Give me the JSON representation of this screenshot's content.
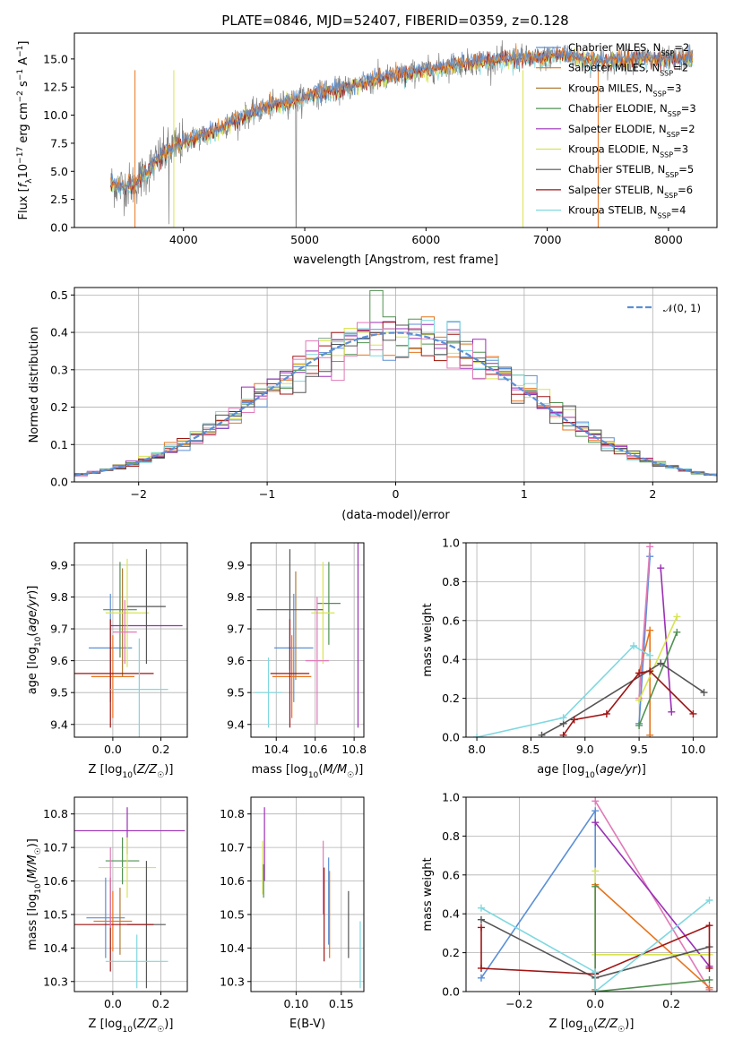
{
  "figure": {
    "title": "PLATE=0846, MJD=52407, FIBERID=0359, z=0.128"
  },
  "colors": {
    "Chabrier MILES": "#5b8fd6",
    "Salpeter MILES": "#e6741c",
    "Kroupa MILES": "#b07c38",
    "Chabrier ELODIE": "#4f9150",
    "Salpeter ELODIE": "#9b2fb5",
    "Kroupa ELODIE": "#d8e450",
    "Chabrier STELIB": "#555555",
    "Salpeter STELIB": "#a01414",
    "Kroupa STELIB": "#7fd8e0",
    "pink": "#e07ab8",
    "gaussian": "#5b8fd6"
  },
  "chart_data": [
    {
      "id": "spectrum",
      "type": "line",
      "title": "PLATE=0846, MJD=52407, FIBERID=0359, z=0.128",
      "xlabel": "wavelength [Angstrom, rest frame]",
      "ylabel": "Flux [f_λ 10^-17 erg cm^-2 s^-1 A^-1]",
      "xlim": [
        3100,
        8400
      ],
      "ylim": [
        0,
        17.3
      ],
      "xticks": [
        4000,
        5000,
        6000,
        7000,
        8000
      ],
      "yticks": [
        0.0,
        2.5,
        5.0,
        7.5,
        10.0,
        12.5,
        15.0
      ],
      "grid": false,
      "legend_placement": "right",
      "legend": [
        {
          "model": "Chabrier MILES",
          "n_ssp": 2
        },
        {
          "model": "Salpeter MILES",
          "n_ssp": 2
        },
        {
          "model": "Kroupa MILES",
          "n_ssp": 3
        },
        {
          "model": "Chabrier ELODIE",
          "n_ssp": 3
        },
        {
          "model": "Salpeter ELODIE",
          "n_ssp": 2
        },
        {
          "model": "Kroupa ELODIE",
          "n_ssp": 3
        },
        {
          "model": "Chabrier STELIB",
          "n_ssp": 5
        },
        {
          "model": "Salpeter STELIB",
          "n_ssp": 6
        },
        {
          "model": "Kroupa STELIB",
          "n_ssp": 4
        }
      ],
      "continuum": [
        [
          3400,
          3.9
        ],
        [
          3500,
          3.6
        ],
        [
          3600,
          3.9
        ],
        [
          3700,
          5.0
        ],
        [
          3800,
          6.2
        ],
        [
          3900,
          7.0
        ],
        [
          4000,
          7.6
        ],
        [
          4100,
          8.0
        ],
        [
          4200,
          8.3
        ],
        [
          4300,
          8.8
        ],
        [
          4400,
          9.4
        ],
        [
          4500,
          9.9
        ],
        [
          4600,
          10.3
        ],
        [
          4700,
          10.7
        ],
        [
          4800,
          11.0
        ],
        [
          4900,
          11.3
        ],
        [
          5000,
          11.6
        ],
        [
          5100,
          11.9
        ],
        [
          5200,
          12.1
        ],
        [
          5300,
          12.3
        ],
        [
          5400,
          12.6
        ],
        [
          5500,
          12.9
        ],
        [
          5600,
          13.2
        ],
        [
          5700,
          13.4
        ],
        [
          5800,
          13.6
        ],
        [
          5900,
          13.8
        ],
        [
          6000,
          14.0
        ],
        [
          6100,
          14.2
        ],
        [
          6200,
          14.4
        ],
        [
          6300,
          14.6
        ],
        [
          6400,
          14.7
        ],
        [
          6500,
          14.8
        ],
        [
          6600,
          14.9
        ],
        [
          6700,
          15.0
        ],
        [
          6800,
          15.1
        ],
        [
          6900,
          15.0
        ],
        [
          7000,
          15.1
        ],
        [
          7100,
          15.3
        ],
        [
          7200,
          15.2
        ],
        [
          7300,
          15.0
        ],
        [
          7400,
          14.8
        ],
        [
          7500,
          14.7
        ],
        [
          7600,
          14.9
        ],
        [
          7700,
          15.0
        ],
        [
          7800,
          15.1
        ],
        [
          7900,
          15.0
        ],
        [
          8000,
          14.9
        ],
        [
          8100,
          15.0
        ],
        [
          8200,
          15.1
        ]
      ]
    },
    {
      "id": "residuals",
      "type": "histogram",
      "xlabel": "(data-model)/error",
      "ylabel": "Normed distribution",
      "xlim": [
        -2.5,
        2.5
      ],
      "ylim": [
        0,
        0.52
      ],
      "xticks": [
        -2,
        -1,
        0,
        1,
        2
      ],
      "yticks": [
        0.0,
        0.1,
        0.2,
        0.3,
        0.4,
        0.5
      ],
      "grid": true,
      "legend_placement": "top-right",
      "legend": [
        {
          "label": "𝒩(0, 1)",
          "style": "dashed"
        }
      ],
      "bin_width": 0.1
    },
    {
      "id": "age-vs-z",
      "type": "scatter",
      "xlabel": "Z [log10(Z/Z☉)]",
      "ylabel": "age [log10(age/yr)]",
      "xlim": [
        -0.16,
        0.31
      ],
      "ylim": [
        9.36,
        9.97
      ],
      "xticks": [
        0.0,
        0.2
      ],
      "yticks": [
        9.4,
        9.5,
        9.6,
        9.7,
        9.8,
        9.9
      ],
      "grid": true,
      "points": [
        {
          "model": "Chabrier MILES",
          "x": -0.01,
          "xerr": 0.09,
          "y": 9.64,
          "yerr": 0.17
        },
        {
          "model": "Salpeter MILES",
          "x": 0.0,
          "xerr": 0.09,
          "y": 9.55,
          "yerr": 0.13
        },
        {
          "model": "Kroupa MILES",
          "x": 0.04,
          "xerr": 0.0,
          "y": 9.72,
          "yerr": 0.17
        },
        {
          "model": "Chabrier ELODIE",
          "x": 0.03,
          "xerr": 0.07,
          "y": 9.76,
          "yerr": 0.15
        },
        {
          "model": "Salpeter ELODIE",
          "x": 0.14,
          "xerr": 0.15,
          "y": 9.71,
          "yerr": 0.0
        },
        {
          "model": "Kroupa ELODIE",
          "x": 0.06,
          "xerr": 0.09,
          "y": 9.75,
          "yerr": 0.17
        },
        {
          "model": "Chabrier STELIB",
          "x": 0.14,
          "xerr": 0.08,
          "y": 9.77,
          "yerr": 0.18
        },
        {
          "model": "Salpeter STELIB",
          "x": -0.01,
          "xerr": 0.18,
          "y": 9.56,
          "yerr": 0.17
        },
        {
          "model": "Kroupa STELIB",
          "x": 0.11,
          "xerr": 0.12,
          "y": 9.51,
          "yerr": 0.16
        },
        {
          "model": "pink",
          "x": 0.05,
          "xerr": 0.05,
          "y": 9.69,
          "yerr": 0.1
        }
      ]
    },
    {
      "id": "age-vs-mass",
      "type": "scatter",
      "xlabel": "mass [log10(M/M☉)]",
      "ylabel": "",
      "xlim": [
        10.27,
        10.85
      ],
      "ylim": [
        9.36,
        9.97
      ],
      "xticks": [
        10.4,
        10.6,
        10.8
      ],
      "yticks": [
        9.4,
        9.5,
        9.6,
        9.7,
        9.8,
        9.9
      ],
      "grid": true,
      "points": [
        {
          "model": "Chabrier MILES",
          "x": 10.49,
          "xerr": 0.1,
          "y": 9.64,
          "yerr": 0.17
        },
        {
          "model": "Salpeter MILES",
          "x": 10.48,
          "xerr": 0.1,
          "y": 9.55,
          "yerr": 0.13
        },
        {
          "model": "Kroupa MILES",
          "x": 10.5,
          "xerr": 0.0,
          "y": 9.71,
          "yerr": 0.17
        },
        {
          "model": "Chabrier ELODIE",
          "x": 10.67,
          "xerr": 0.06,
          "y": 9.78,
          "yerr": 0.13
        },
        {
          "model": "Salpeter ELODIE",
          "x": 10.82,
          "xerr": 0.0,
          "y": 9.71,
          "yerr": 0.32
        },
        {
          "model": "Kroupa ELODIE",
          "x": 10.64,
          "xerr": 0.06,
          "y": 9.75,
          "yerr": 0.16
        },
        {
          "model": "Chabrier STELIB",
          "x": 10.47,
          "xerr": 0.17,
          "y": 9.76,
          "yerr": 0.19
        },
        {
          "model": "Salpeter STELIB",
          "x": 10.47,
          "xerr": 0.1,
          "y": 9.56,
          "yerr": 0.17
        },
        {
          "model": "Kroupa STELIB",
          "x": 10.36,
          "xerr": 0.07,
          "y": 9.5,
          "yerr": 0.11
        },
        {
          "model": "pink",
          "x": 10.61,
          "xerr": 0.06,
          "y": 9.6,
          "yerr": 0.2
        }
      ]
    },
    {
      "id": "mass-weight-vs-age",
      "type": "line",
      "xlabel": "age [log10(age/yr)]",
      "ylabel": "mass weight",
      "xlim": [
        7.9,
        10.22
      ],
      "ylim": [
        0,
        1.0
      ],
      "xticks": [
        8.0,
        8.5,
        9.0,
        9.5,
        10.0
      ],
      "yticks": [
        0.0,
        0.2,
        0.4,
        0.6,
        0.8,
        1.0
      ],
      "grid": true,
      "series": [
        {
          "model": "Chabrier MILES",
          "x": [
            9.5,
            9.6
          ],
          "y": [
            0.07,
            0.93
          ]
        },
        {
          "model": "Salpeter MILES",
          "x": [
            9.5,
            9.6,
            9.6
          ],
          "y": [
            0.33,
            0.55,
            0.01
          ]
        },
        {
          "model": "pink",
          "x": [
            9.5,
            9.6
          ],
          "y": [
            0.2,
            0.98
          ]
        },
        {
          "model": "Salpeter ELODIE",
          "x": [
            9.7,
            9.8
          ],
          "y": [
            0.87,
            0.13
          ]
        },
        {
          "model": "Kroupa ELODIE",
          "x": [
            9.5,
            9.85
          ],
          "y": [
            0.19,
            0.62
          ]
        },
        {
          "model": "Chabrier ELODIE",
          "x": [
            9.5,
            9.85
          ],
          "y": [
            0.06,
            0.54
          ]
        },
        {
          "model": "Chabrier STELIB",
          "x": [
            8.6,
            8.8,
            9.7,
            10.1
          ],
          "y": [
            0.01,
            0.07,
            0.38,
            0.23
          ]
        },
        {
          "model": "Salpeter STELIB",
          "x": [
            8.8,
            8.9,
            9.2,
            9.5,
            9.6,
            10.0
          ],
          "y": [
            0.01,
            0.09,
            0.12,
            0.33,
            0.34,
            0.12
          ]
        },
        {
          "model": "Kroupa STELIB",
          "x": [
            8.0,
            8.8,
            9.45,
            9.6
          ],
          "y": [
            0.0,
            0.1,
            0.47,
            0.42
          ]
        }
      ]
    },
    {
      "id": "mass-vs-z",
      "type": "scatter",
      "xlabel": "Z [log10(Z/Z☉)]",
      "ylabel": "mass [log10(M/M☉)]",
      "xlim": [
        -0.16,
        0.31
      ],
      "ylim": [
        10.27,
        10.85
      ],
      "xticks": [
        0.0,
        0.2
      ],
      "yticks": [
        10.3,
        10.4,
        10.5,
        10.6,
        10.7,
        10.8
      ],
      "grid": true,
      "points": [
        {
          "model": "Chabrier MILES",
          "x": -0.03,
          "xerr": 0.08,
          "y": 10.49,
          "yerr": 0.12
        },
        {
          "model": "Salpeter MILES",
          "x": 0.0,
          "xerr": 0.08,
          "y": 10.48,
          "yerr": 0.09
        },
        {
          "model": "Kroupa MILES",
          "x": 0.03,
          "xerr": 0.0,
          "y": 10.48,
          "yerr": 0.1
        },
        {
          "model": "Chabrier ELODIE",
          "x": 0.04,
          "xerr": 0.07,
          "y": 10.66,
          "yerr": 0.07
        },
        {
          "model": "Salpeter ELODIE",
          "x": 0.06,
          "xerr": 0.24,
          "y": 10.75,
          "yerr": 0.07
        },
        {
          "model": "Kroupa ELODIE",
          "x": 0.06,
          "xerr": 0.12,
          "y": 10.64,
          "yerr": 0.09
        },
        {
          "model": "Chabrier STELIB",
          "x": 0.14,
          "xerr": 0.08,
          "y": 10.47,
          "yerr": 0.19
        },
        {
          "model": "Salpeter STELIB",
          "x": -0.01,
          "xerr": 0.18,
          "y": 10.47,
          "yerr": 0.14
        },
        {
          "model": "Kroupa STELIB",
          "x": 0.1,
          "xerr": 0.13,
          "y": 10.36,
          "yerr": 0.08
        },
        {
          "model": "pink",
          "x": -0.01,
          "xerr": 0.0,
          "y": 10.58,
          "yerr": 0.12
        }
      ]
    },
    {
      "id": "mass-vs-ebv",
      "type": "scatter",
      "xlabel": "E(B-V)",
      "ylabel": "",
      "xlim": [
        0.05,
        0.175
      ],
      "ylim": [
        10.27,
        10.85
      ],
      "xticks": [
        0.1,
        0.15
      ],
      "yticks": [
        10.3,
        10.4,
        10.5,
        10.6,
        10.7,
        10.8
      ],
      "grid": true,
      "points": [
        {
          "model": "Salpeter ELODIE",
          "x": 0.065,
          "xerr": 0.0,
          "y": 10.71,
          "yerr": 0.11
        },
        {
          "model": "Kroupa ELODIE",
          "x": 0.063,
          "xerr": 0.0,
          "y": 10.64,
          "yerr": 0.08
        },
        {
          "model": "Chabrier ELODIE",
          "x": 0.064,
          "xerr": 0.0,
          "y": 10.6,
          "yerr": 0.05
        },
        {
          "model": "pink",
          "x": 0.13,
          "xerr": 0.0,
          "y": 10.61,
          "yerr": 0.11
        },
        {
          "model": "Salpeter STELIB",
          "x": 0.131,
          "xerr": 0.0,
          "y": 10.5,
          "yerr": 0.14
        },
        {
          "model": "Chabrier MILES",
          "x": 0.136,
          "xerr": 0.0,
          "y": 10.54,
          "yerr": 0.13
        },
        {
          "model": "Salpeter MILES",
          "x": 0.137,
          "xerr": 0.0,
          "y": 10.5,
          "yerr": 0.13
        },
        {
          "model": "Chabrier STELIB",
          "x": 0.158,
          "xerr": 0.0,
          "y": 10.47,
          "yerr": 0.1
        },
        {
          "model": "Kroupa STELIB",
          "x": 0.171,
          "xerr": 0.0,
          "y": 10.38,
          "yerr": 0.1
        }
      ]
    },
    {
      "id": "mass-weight-vs-z",
      "type": "line",
      "xlabel": "Z [log10(Z/Z☉)]",
      "ylabel": "mass weight",
      "xlim": [
        -0.34,
        0.32
      ],
      "ylim": [
        0,
        1.0
      ],
      "xticks": [
        -0.2,
        0.0,
        0.2
      ],
      "yticks": [
        0.0,
        0.2,
        0.4,
        0.6,
        0.8,
        1.0
      ],
      "grid": true,
      "series": [
        {
          "model": "Chabrier MILES",
          "x": [
            -0.3,
            0.0,
            0.0
          ],
          "y": [
            0.07,
            0.93,
            0.0
          ]
        },
        {
          "model": "pink",
          "x": [
            0.0,
            0.3
          ],
          "y": [
            0.98,
            0.01
          ]
        },
        {
          "model": "Salpeter MILES",
          "x": [
            0.0,
            0.0,
            0.3
          ],
          "y": [
            0.01,
            0.55,
            0.02
          ]
        },
        {
          "model": "Salpeter ELODIE",
          "x": [
            0.0,
            0.3
          ],
          "y": [
            0.87,
            0.13
          ]
        },
        {
          "model": "Kroupa ELODIE",
          "x": [
            0.0,
            0.0,
            0.3
          ],
          "y": [
            0.62,
            0.19,
            0.19
          ]
        },
        {
          "model": "Chabrier ELODIE",
          "x": [
            0.0,
            0.0,
            0.3
          ],
          "y": [
            0.54,
            0.0,
            0.06
          ]
        },
        {
          "model": "Chabrier STELIB",
          "x": [
            -0.3,
            0.0,
            0.3
          ],
          "y": [
            0.37,
            0.07,
            0.23
          ]
        },
        {
          "model": "Salpeter STELIB",
          "x": [
            -0.3,
            -0.3,
            0.0,
            0.3,
            0.3
          ],
          "y": [
            0.33,
            0.12,
            0.09,
            0.34,
            0.12
          ]
        },
        {
          "model": "Kroupa STELIB",
          "x": [
            -0.3,
            0.0,
            0.0,
            0.3
          ],
          "y": [
            0.43,
            0.1,
            0.0,
            0.47
          ]
        }
      ]
    }
  ]
}
